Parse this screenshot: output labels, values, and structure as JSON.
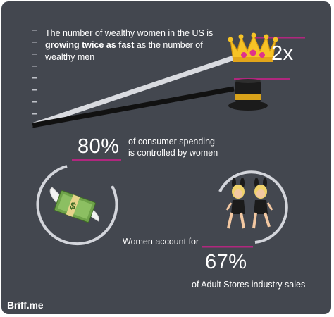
{
  "headline": {
    "prefix": "The number of wealthy women in the US is",
    "bold": "growing twice as fast",
    "suffix": "as the number of wealthy men"
  },
  "chart_data": {
    "type": "line",
    "x": [
      0,
      1
    ],
    "series": [
      {
        "values": [
          0,
          2
        ]
      },
      {
        "values": [
          0,
          1
        ]
      }
    ],
    "annotation": "2x",
    "ylim": [
      0,
      2.2
    ]
  },
  "stat_spending": {
    "value": "80%",
    "text_line1": "of consumer spending",
    "text_line2": "is controlled by women"
  },
  "stat_sales": {
    "intro": "Women account for",
    "value": "67%",
    "text": "of Adult Stores industry sales"
  },
  "brand": {
    "name": "Briff",
    "tld": ".me"
  },
  "colors": {
    "background": "#43474f",
    "accent": "#b0277e",
    "line": "#d9dbe0",
    "ring": "#d3d5db"
  },
  "icons": [
    "crown-icon",
    "top-hat-icon",
    "money-with-wings-icon",
    "dancers-icon"
  ]
}
